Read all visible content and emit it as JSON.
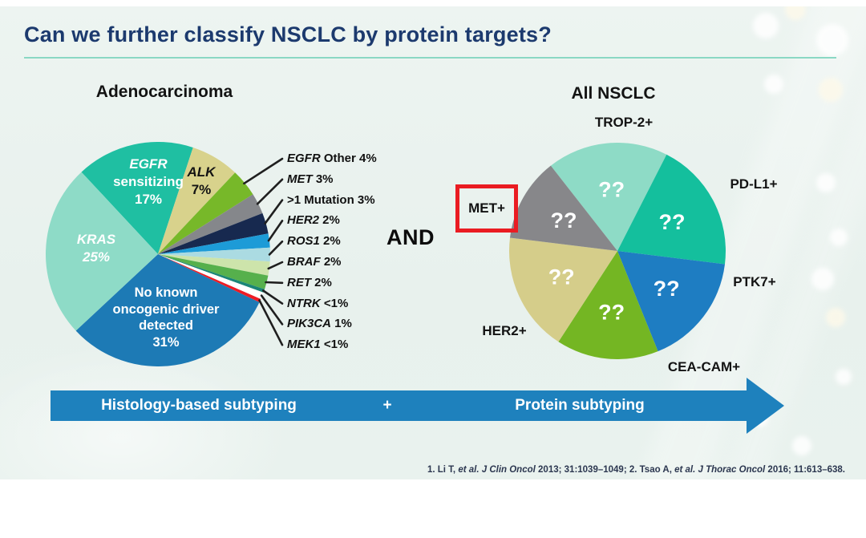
{
  "slide": {
    "title": "Can we further classify NSCLC by protein targets?",
    "and_connector": "AND",
    "arrow": {
      "left_label": "Histology-based subtyping",
      "plus": "+",
      "right_label": "Protein subtyping"
    },
    "footer_citation_segments": [
      {
        "t": "1. Li T, "
      },
      {
        "t": "et al. ",
        "i": 1
      },
      {
        "t": "J Clin Oncol ",
        "i": 1
      },
      {
        "t": "2013; "
      },
      {
        "t": "31",
        "b": 1
      },
      {
        "t": ":1039–1049; 2. Tsao A, "
      },
      {
        "t": "et al. ",
        "i": 1
      },
      {
        "t": "J Thorac Oncol ",
        "i": 1
      },
      {
        "t": "2016; "
      },
      {
        "t": "11",
        "b": 1
      },
      {
        "t": ":613–638.",
        "b": 0
      }
    ]
  },
  "chart_data": [
    {
      "type": "pie",
      "title": "Adenocarcinoma",
      "start_angle_deg": -43,
      "slices": [
        {
          "label": "EGFR sensitizing",
          "display": "17%",
          "value": 17,
          "color": "#1fbfa2"
        },
        {
          "label": "ALK",
          "display": "7%",
          "value": 7,
          "color": "#d8d28c"
        },
        {
          "label": "EGFR Other",
          "gene": "EGFR",
          "rest": "Other 4%",
          "display": "4%",
          "value": 4,
          "color": "#77b829",
          "callout": true
        },
        {
          "label": "MET",
          "gene": "MET",
          "rest": "3%",
          "display": "3%",
          "value": 3,
          "color": "#85878b",
          "callout": true
        },
        {
          "label": ">1 Mutation",
          "gene": "",
          "rest": ">1 Mutation 3%",
          "display": "3%",
          "value": 3,
          "color": "#17294f",
          "callout": true
        },
        {
          "label": "HER2",
          "gene": "HER2",
          "rest": "2%",
          "display": "2%",
          "value": 2,
          "color": "#1d9bd7",
          "callout": true
        },
        {
          "label": "ROS1",
          "gene": "ROS1",
          "rest": "2%",
          "display": "2%",
          "value": 2,
          "color": "#abdbe2",
          "callout": true
        },
        {
          "label": "BRAF",
          "gene": "BRAF",
          "rest": "2%",
          "display": "2%",
          "value": 2,
          "color": "#cde4ab",
          "callout": true
        },
        {
          "label": "RET",
          "gene": "RET",
          "rest": "2%",
          "display": "2%",
          "value": 2,
          "color": "#56b04c",
          "callout": true
        },
        {
          "label": "NTRK",
          "gene": "NTRK",
          "rest": "<1%",
          "display": "<1%",
          "value": 0.5,
          "color": "#1a8577",
          "callout": true
        },
        {
          "label": "PIK3CA",
          "gene": "PIK3CA",
          "rest": "1%",
          "display": "1%",
          "value": 1,
          "color": "#ffffff",
          "callout": true
        },
        {
          "label": "MEK1",
          "gene": "MEK1",
          "rest": "<1%",
          "display": "<1%",
          "value": 0.5,
          "color": "#ee1c25",
          "callout": true
        },
        {
          "label": "No known oncogenic driver detected",
          "display": "31%",
          "value": 31,
          "color": "#1d7ab5"
        },
        {
          "label": "KRAS",
          "display": "25%",
          "value": 25,
          "color": "#8edbc7"
        }
      ],
      "inner_labels": {
        "egfr": {
          "gene": "EGFR",
          "rest": "sensitizing\n17%"
        },
        "alk": {
          "gene": "ALK",
          "rest": "7%"
        },
        "kras": {
          "gene": "KRAS",
          "rest": "25%"
        },
        "no_driver": {
          "rest": "No known\noncogenic driver\ndetected\n31%"
        }
      }
    },
    {
      "type": "pie",
      "title": "All NSCLC",
      "unknown_mark": "??",
      "start_angle_deg": -38,
      "slices": [
        {
          "label": "TROP-2+",
          "value": "??",
          "sweep_deg": 65,
          "color": "#8edbc6"
        },
        {
          "label": "PD-L1+",
          "value": "??",
          "sweep_deg": 70,
          "color": "#14bf9d"
        },
        {
          "label": "PTK7+",
          "value": "??",
          "sweep_deg": 61,
          "color": "#1e7dc2"
        },
        {
          "label": "CEA-CAM+",
          "value": "??",
          "sweep_deg": 55,
          "color": "#74b623"
        },
        {
          "label": "HER2+",
          "value": "??",
          "sweep_deg": 64,
          "color": "#d5cd8a"
        },
        {
          "label": "MET+",
          "value": "??",
          "sweep_deg": 45,
          "color": "#87878a",
          "highlighted": true
        }
      ]
    }
  ]
}
